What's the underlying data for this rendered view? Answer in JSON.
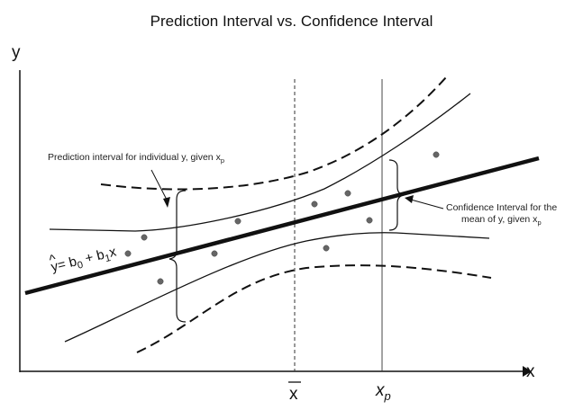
{
  "title": "Prediction Interval vs. Confidence Interval",
  "axes": {
    "y_label": "y",
    "x_label": "x",
    "xbar_label": "x",
    "xp_label": "x",
    "xp_sub": "p"
  },
  "equation": {
    "lhs": "y",
    "hat": "^",
    "eq_b": "= b",
    "sub0": "0",
    "plus_b": " + b",
    "sub1": "1",
    "x": "x"
  },
  "annotations": {
    "prediction_text": "Prediction interval for individual y, given x",
    "prediction_sub": "p",
    "confidence_line1": "Confidence Interval for the",
    "confidence_line2": "mean of y, given x",
    "confidence_sub": "p"
  },
  "colors": {
    "ink": "#111111",
    "point": "#666666"
  }
}
